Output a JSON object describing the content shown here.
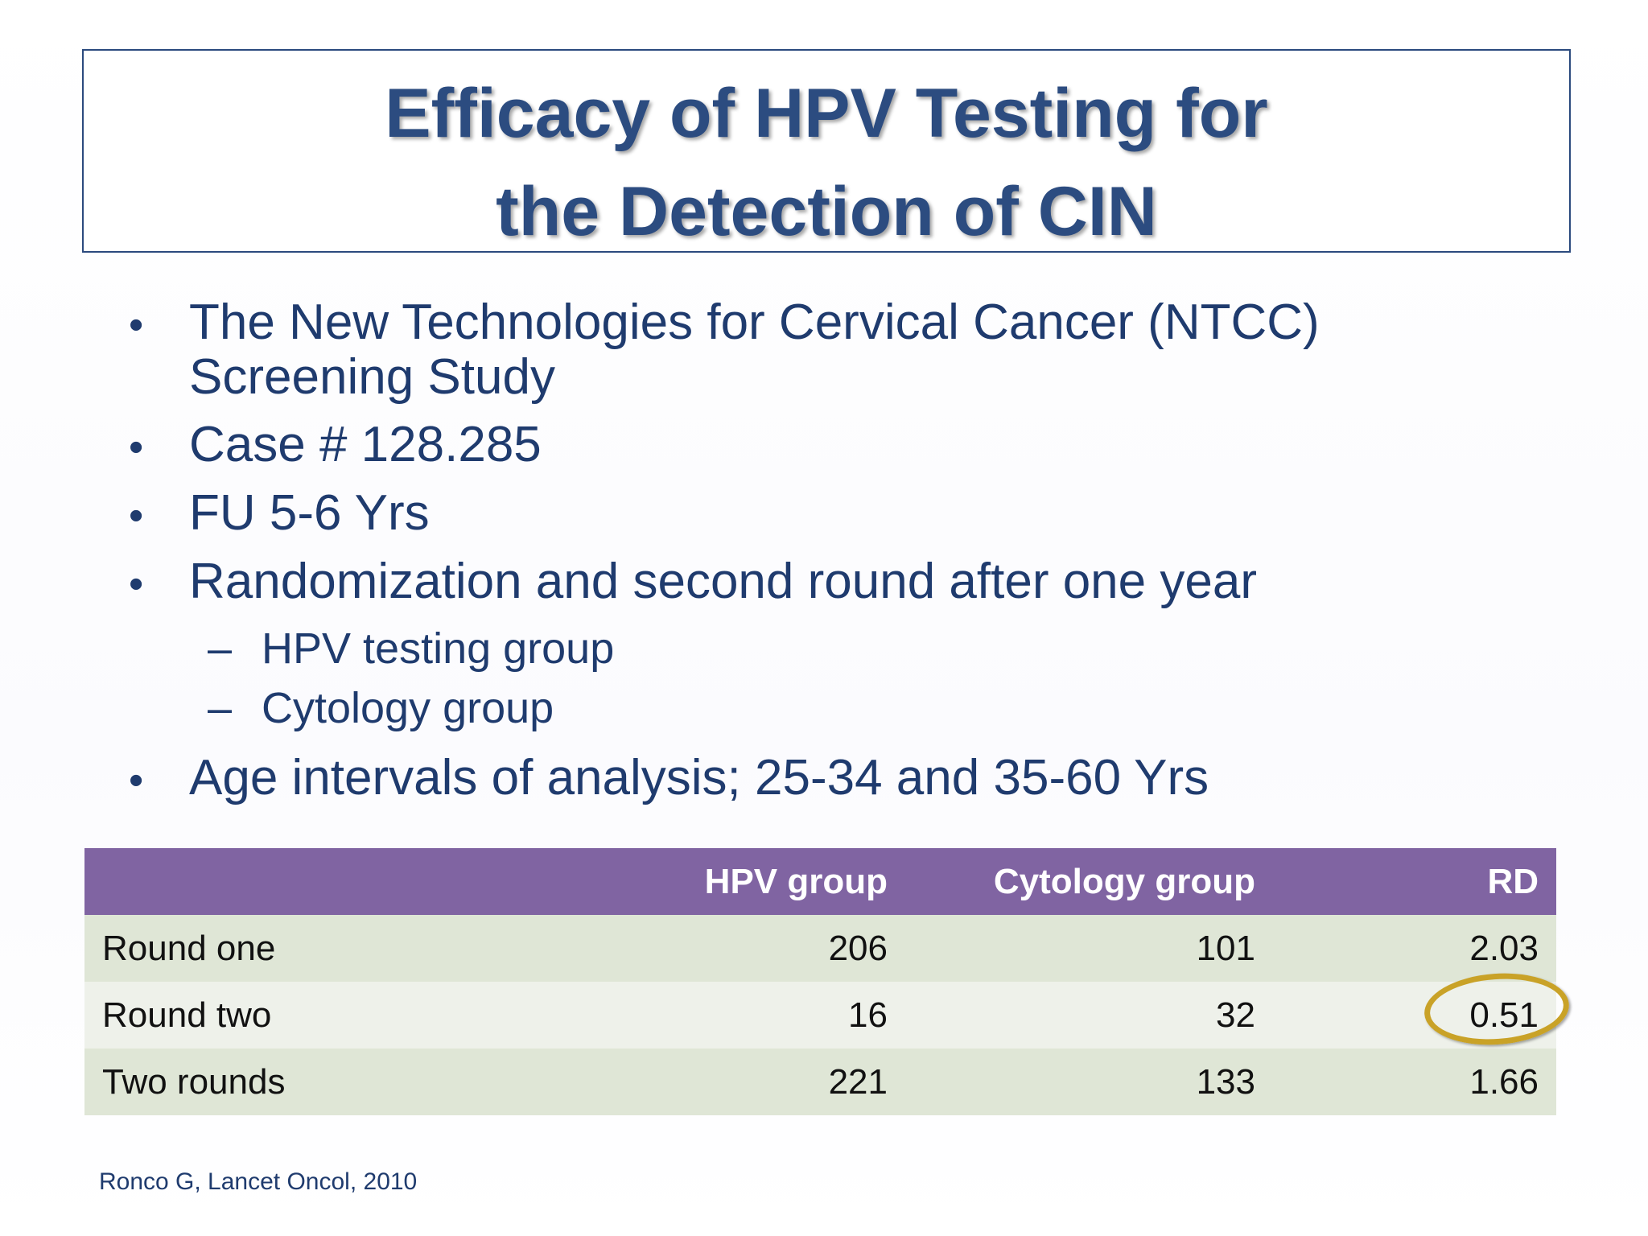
{
  "title": {
    "line1": "Efficacy of HPV Testing for",
    "line2": "the Detection of CIN"
  },
  "bullets": {
    "b1_line1": "The New Technologies for Cervical Cancer (NTCC)",
    "b1_line2": "Screening Study",
    "b2": "Case # 128.285",
    "b3": "FU 5-6 Yrs",
    "b4": "Randomization and second round after one year",
    "sub1": "HPV testing group",
    "sub2": "Cytology group",
    "b5": "Age intervals of analysis; 25-34 and 35-60 Yrs",
    "bullet_glyph": "•",
    "dash_glyph": "–"
  },
  "table": {
    "headers": [
      "",
      "HPV group",
      "Cytology group",
      "RD"
    ],
    "rows": [
      {
        "label": "Round one",
        "hpv": "206",
        "cytology": "101",
        "rd": "2.03"
      },
      {
        "label": "Round two",
        "hpv": "16",
        "cytology": "32",
        "rd": "0.51"
      },
      {
        "label": "Two rounds",
        "hpv": "221",
        "cytology": "133",
        "rd": "1.66"
      }
    ],
    "header_color": "#8064a2",
    "highlight_color": "#c9a227"
  },
  "citation": "Ronco G, Lancet Oncol, 2010"
}
